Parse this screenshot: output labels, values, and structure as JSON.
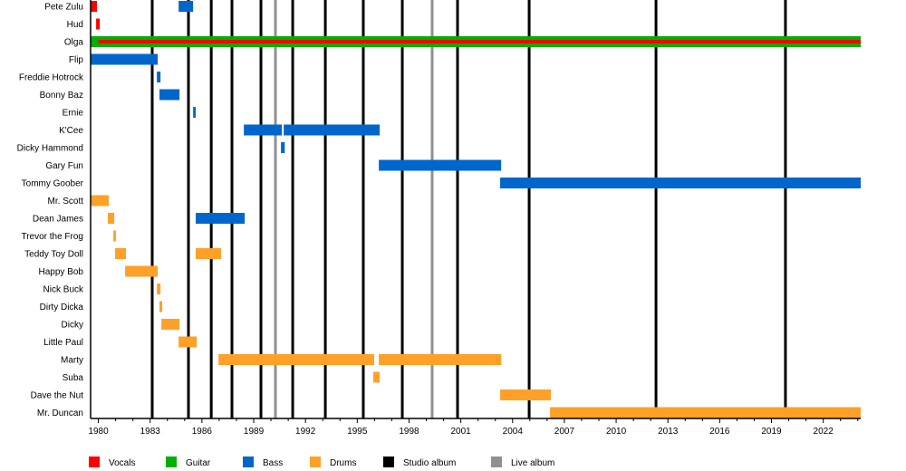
{
  "chart_data": {
    "type": "timeline",
    "x_axis": {
      "range": [
        1979.55,
        2024.17
      ],
      "tick_labels": [
        "1980",
        "1983",
        "1986",
        "1989",
        "1992",
        "1995",
        "1998",
        "2001",
        "2004",
        "2007",
        "2010",
        "2013",
        "2016",
        "2019",
        "2022"
      ],
      "minor_ticks_every_years": 1
    },
    "colors": {
      "Vocals": "#ff0000",
      "Guitar": "#00b000",
      "Bass": "#0066cc",
      "Drums": "#ffa028",
      "Studio album": "#000000",
      "Live album": "#909090"
    },
    "legend": {
      "placement": "bottom",
      "items": [
        "Vocals",
        "Guitar",
        "Bass",
        "Drums",
        "Studio album",
        "Live album"
      ]
    },
    "members": [
      {
        "name": "Pete Zulu",
        "spans": [
          {
            "role": "Vocals",
            "from": 1979.55,
            "to": 1979.92
          },
          {
            "role": "Bass",
            "from": 1984.65,
            "to": 1985.49
          }
        ]
      },
      {
        "name": "Hud",
        "spans": [
          {
            "role": "Vocals",
            "from": 1979.87,
            "to": 1980.08
          }
        ]
      },
      {
        "name": "Olga",
        "spans": [
          {
            "role": "Guitar",
            "from": 1979.55,
            "to": 2024.17
          },
          {
            "role": "Vocals",
            "from": 1980.0,
            "to": 2024.17,
            "inner": true
          }
        ]
      },
      {
        "name": "Flip",
        "spans": [
          {
            "role": "Bass",
            "from": 1979.55,
            "to": 1983.44
          }
        ]
      },
      {
        "name": "Freddie Hotrock",
        "spans": [
          {
            "role": "Bass",
            "from": 1983.39,
            "to": 1983.6
          }
        ]
      },
      {
        "name": "Bonny Baz",
        "spans": [
          {
            "role": "Bass",
            "from": 1983.54,
            "to": 1984.7
          }
        ]
      },
      {
        "name": "Ernie",
        "spans": [
          {
            "role": "Bass",
            "from": 1985.49,
            "to": 1985.64
          }
        ]
      },
      {
        "name": "K'Cee",
        "spans": [
          {
            "role": "Bass",
            "from": 1988.43,
            "to": 1990.63
          },
          {
            "role": "Bass",
            "from": 1990.74,
            "to": 1996.3
          }
        ]
      },
      {
        "name": "Dicky Hammond",
        "spans": [
          {
            "role": "Bass",
            "from": 1990.58,
            "to": 1990.8
          }
        ]
      },
      {
        "name": "Gary Fun",
        "spans": [
          {
            "role": "Bass",
            "from": 1996.25,
            "to": 2003.34
          }
        ]
      },
      {
        "name": "Tommy Goober",
        "spans": [
          {
            "role": "Bass",
            "from": 2003.28,
            "to": 2024.17
          }
        ]
      },
      {
        "name": "Mr. Scott",
        "spans": [
          {
            "role": "Drums",
            "from": 1979.55,
            "to": 1980.6
          }
        ]
      },
      {
        "name": "Dean James",
        "spans": [
          {
            "role": "Drums",
            "from": 1980.55,
            "to": 1980.92
          },
          {
            "role": "Bass",
            "from": 1985.64,
            "to": 1988.48
          }
        ]
      },
      {
        "name": "Trevor the Frog",
        "spans": [
          {
            "role": "Drums",
            "from": 1980.87,
            "to": 1981.02
          }
        ]
      },
      {
        "name": "Teddy Toy Doll",
        "spans": [
          {
            "role": "Drums",
            "from": 1980.97,
            "to": 1981.6
          },
          {
            "role": "Drums",
            "from": 1985.64,
            "to": 1987.11
          }
        ]
      },
      {
        "name": "Happy Bob",
        "spans": [
          {
            "role": "Drums",
            "from": 1981.55,
            "to": 1983.44
          }
        ]
      },
      {
        "name": "Nick Buck",
        "spans": [
          {
            "role": "Drums",
            "from": 1983.39,
            "to": 1983.6
          }
        ]
      },
      {
        "name": "Dirty Dicka",
        "spans": [
          {
            "role": "Drums",
            "from": 1983.54,
            "to": 1983.7
          }
        ]
      },
      {
        "name": "Dicky",
        "spans": [
          {
            "role": "Drums",
            "from": 1983.65,
            "to": 1984.7
          }
        ]
      },
      {
        "name": "Little Paul",
        "spans": [
          {
            "role": "Drums",
            "from": 1984.65,
            "to": 1985.7
          }
        ]
      },
      {
        "name": "Marty",
        "spans": [
          {
            "role": "Drums",
            "from": 1986.96,
            "to": 1995.98
          },
          {
            "role": "Drums",
            "from": 1996.25,
            "to": 2003.34
          }
        ]
      },
      {
        "name": "Suba",
        "spans": [
          {
            "role": "Drums",
            "from": 1995.93,
            "to": 1996.3
          }
        ]
      },
      {
        "name": "Dave the Nut",
        "spans": [
          {
            "role": "Drums",
            "from": 2003.28,
            "to": 2006.22
          }
        ]
      },
      {
        "name": "Mr. Duncan",
        "spans": [
          {
            "role": "Drums",
            "from": 2006.17,
            "to": 2024.17
          }
        ]
      }
    ],
    "studio_albums": [
      1983.12,
      1985.22,
      1986.54,
      1987.74,
      1989.42,
      1991.26,
      1993.15,
      1995.35,
      1997.61,
      2000.81,
      2004.96,
      2012.31,
      2019.81
    ],
    "live_albums": [
      1990.26,
      1999.34
    ]
  }
}
